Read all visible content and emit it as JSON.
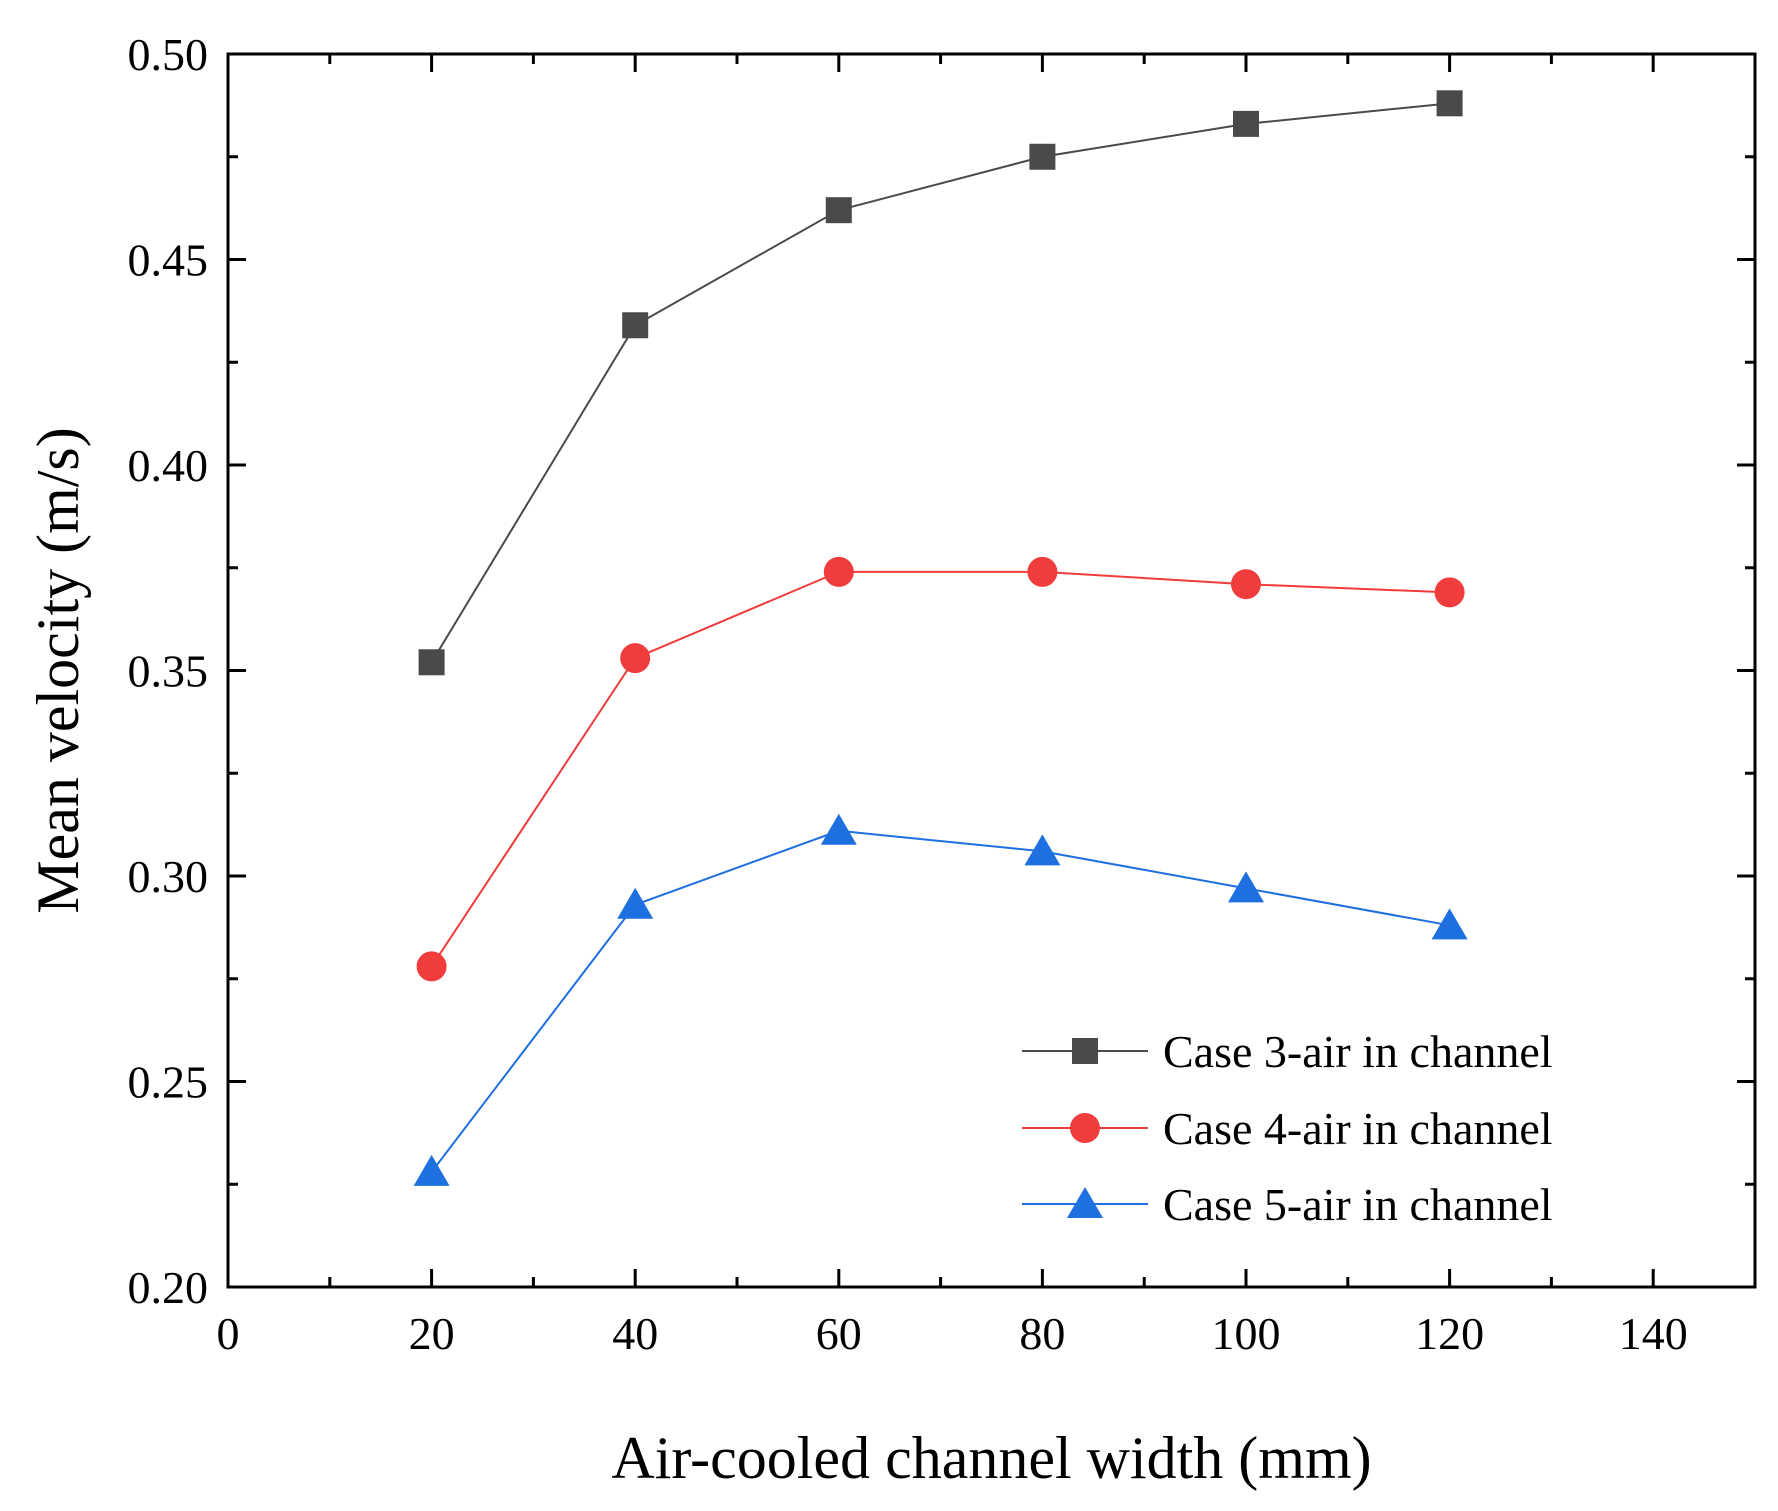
{
  "chart_data": {
    "type": "line",
    "title": "",
    "xlabel": "Air-cooled channel width (mm)",
    "ylabel": "Mean velocity (m/s)",
    "xlim": [
      0,
      150
    ],
    "ylim": [
      0.2,
      0.5
    ],
    "x_ticks": [
      0,
      20,
      40,
      60,
      80,
      100,
      120,
      140
    ],
    "x_tick_labels": [
      "0",
      "20",
      "40",
      "60",
      "80",
      "100",
      "120",
      "140"
    ],
    "y_ticks": [
      0.2,
      0.25,
      0.3,
      0.35,
      0.4,
      0.45,
      0.5
    ],
    "y_tick_labels": [
      "0.20",
      "0.25",
      "0.30",
      "0.35",
      "0.40",
      "0.45",
      "0.50"
    ],
    "x": [
      20,
      40,
      60,
      80,
      100,
      120
    ],
    "grid": false,
    "legend_position": "bottom-right",
    "series": [
      {
        "name": "Case 3-air in channel",
        "marker": "square",
        "color": "#4a4a4a",
        "values": [
          0.352,
          0.434,
          0.462,
          0.475,
          0.483,
          0.488
        ]
      },
      {
        "name": "Case 4-air in channel",
        "marker": "circle",
        "color": "#f03c3c",
        "values": [
          0.278,
          0.353,
          0.374,
          0.374,
          0.371,
          0.369
        ]
      },
      {
        "name": "Case 5-air in channel",
        "marker": "triangle",
        "color": "#1e6fe0",
        "values": [
          0.228,
          0.293,
          0.311,
          0.306,
          0.297,
          0.288
        ]
      }
    ]
  }
}
